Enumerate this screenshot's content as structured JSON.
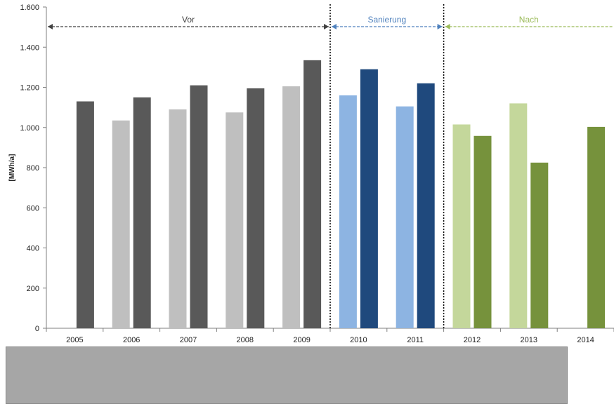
{
  "chart_data": {
    "type": "bar",
    "ylabel": "[MWh/a]",
    "ylim": [
      0,
      1600
    ],
    "yticks": [
      0,
      200,
      400,
      600,
      800,
      1000,
      1200,
      1400,
      1600
    ],
    "ytick_labels": [
      "0",
      "200",
      "400",
      "600",
      "800",
      "1.000",
      "1.200",
      "1.400",
      "1.600"
    ],
    "categories": [
      "2005",
      "2006",
      "2007",
      "2008",
      "2009",
      "2010",
      "2011",
      "2012",
      "2013",
      "2014"
    ],
    "series": [
      {
        "values": [
          null,
          1035,
          1090,
          1075,
          1205,
          1160,
          1105,
          1015,
          1120,
          null
        ]
      },
      {
        "values": [
          1130,
          1150,
          1210,
          1195,
          1335,
          1290,
          1220,
          958,
          825,
          1003
        ]
      }
    ],
    "phases": [
      {
        "label": "Vor",
        "from": 0,
        "to": 4,
        "color": "#404040",
        "light": "#bfbfbf",
        "dark": "#595959"
      },
      {
        "label": "Sanierung",
        "from": 5,
        "to": 6,
        "color": "#4f81bd",
        "light": "#8db4e2",
        "dark": "#1f497d"
      },
      {
        "label": "Nach",
        "from": 7,
        "to": 9,
        "color": "#9bbb59",
        "light": "#c4d79b",
        "dark": "#76923c"
      }
    ],
    "grid": false
  }
}
